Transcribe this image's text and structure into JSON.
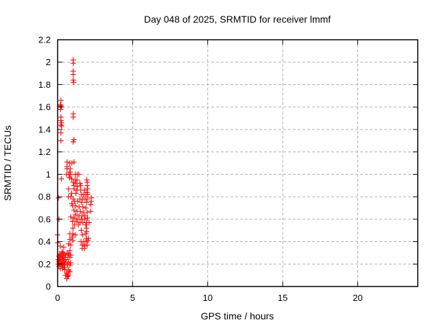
{
  "chart_data": {
    "type": "scatter",
    "title": "Day 048 of 2025, SRMTID for receiver lmmf",
    "xlabel": "GPS time / hours",
    "ylabel": "SRMTID / TECUs",
    "xlim": [
      0,
      24
    ],
    "ylim": [
      0,
      2.2
    ],
    "x_tick_values": [
      0,
      5,
      10,
      15,
      20
    ],
    "x_tick_labels": [
      "0",
      "5",
      "10",
      "15",
      "20"
    ],
    "y_tick_values": [
      0,
      0.2,
      0.4,
      0.6,
      0.8,
      1.0,
      1.2,
      1.4,
      1.6,
      1.8,
      2.0,
      2.2
    ],
    "y_tick_labels": [
      "0",
      "0.2",
      "0.4",
      "0.6",
      "0.8",
      "1",
      "1.2",
      "1.4",
      "1.6",
      "1.8",
      "2",
      "2.2"
    ],
    "grid": true,
    "legend_position": "none",
    "marker": {
      "shape": "plus",
      "color": "#ff0000",
      "size": 8
    },
    "grid_color": "#b0b0b0",
    "border_color": "#000000",
    "series": [
      {
        "name": "SRMTID",
        "points": [
          [
            1.04,
            2.02
          ],
          [
            1.04,
            1.99
          ],
          [
            1.04,
            1.92
          ],
          [
            1.04,
            1.89
          ],
          [
            1.04,
            1.84
          ],
          [
            1.07,
            1.82
          ],
          [
            0.22,
            1.66
          ],
          [
            0.18,
            1.62
          ],
          [
            0.22,
            1.61
          ],
          [
            0.25,
            1.6
          ],
          [
            0.2,
            1.58
          ],
          [
            1.04,
            1.54
          ],
          [
            1.04,
            1.51
          ],
          [
            0.22,
            1.51
          ],
          [
            0.22,
            1.48
          ],
          [
            0.26,
            1.46
          ],
          [
            0.22,
            1.44
          ],
          [
            0.26,
            1.43
          ],
          [
            0.22,
            1.37
          ],
          [
            1.09,
            1.31
          ],
          [
            0.22,
            1.3
          ],
          [
            1.04,
            1.29
          ],
          [
            0.63,
            1.11
          ],
          [
            1.09,
            1.11
          ],
          [
            0.81,
            1.1
          ],
          [
            0.95,
            1.1
          ],
          [
            0.63,
            1.07
          ],
          [
            0.63,
            1.05
          ],
          [
            0.84,
            1.05
          ],
          [
            0.82,
            1.02
          ],
          [
            0.59,
            1.0
          ],
          [
            0.73,
            1.0
          ],
          [
            0.86,
            1.0
          ],
          [
            1.18,
            1.0
          ],
          [
            1.31,
            1.0
          ],
          [
            1.42,
            1.0
          ],
          [
            0.8,
            0.97
          ],
          [
            0.25,
            0.96
          ],
          [
            0.94,
            0.96
          ],
          [
            1.18,
            0.95
          ],
          [
            1.29,
            0.95
          ],
          [
            1.95,
            0.95
          ],
          [
            1.04,
            0.93
          ],
          [
            1.97,
            0.93
          ],
          [
            1.22,
            0.92
          ],
          [
            1.49,
            0.92
          ],
          [
            1.09,
            0.9
          ],
          [
            1.54,
            0.9
          ],
          [
            1.97,
            0.9
          ],
          [
            1.31,
            0.89
          ],
          [
            0.72,
            0.87
          ],
          [
            1.09,
            0.87
          ],
          [
            2.0,
            0.87
          ],
          [
            1.29,
            0.86
          ],
          [
            1.54,
            0.86
          ],
          [
            1.79,
            0.86
          ],
          [
            1.97,
            0.84
          ],
          [
            0.93,
            0.83
          ],
          [
            1.22,
            0.83
          ],
          [
            1.59,
            0.82
          ],
          [
            1.74,
            0.82
          ],
          [
            1.88,
            0.82
          ],
          [
            2.0,
            0.82
          ],
          [
            0.72,
            0.8
          ],
          [
            0.88,
            0.8
          ],
          [
            0.05,
            0.79
          ],
          [
            2.24,
            0.79
          ],
          [
            1.04,
            0.78
          ],
          [
            1.49,
            0.78
          ],
          [
            1.68,
            0.78
          ],
          [
            1.83,
            0.78
          ],
          [
            1.97,
            0.78
          ],
          [
            1.13,
            0.76
          ],
          [
            1.33,
            0.76
          ],
          [
            2.24,
            0.76
          ],
          [
            1.59,
            0.75
          ],
          [
            1.93,
            0.75
          ],
          [
            0.95,
            0.74
          ],
          [
            2.2,
            0.73
          ],
          [
            0.99,
            0.72
          ],
          [
            1.18,
            0.72
          ],
          [
            1.43,
            0.71
          ],
          [
            1.68,
            0.71
          ],
          [
            1.88,
            0.7
          ],
          [
            1.09,
            0.68
          ],
          [
            1.29,
            0.67
          ],
          [
            1.52,
            0.67
          ],
          [
            2.2,
            0.67
          ],
          [
            1.74,
            0.66
          ],
          [
            1.97,
            0.66
          ],
          [
            1.18,
            0.64
          ],
          [
            1.43,
            0.63
          ],
          [
            1.63,
            0.63
          ],
          [
            1.83,
            0.63
          ],
          [
            0.88,
            0.62
          ],
          [
            1.09,
            0.61
          ],
          [
            1.99,
            0.61
          ],
          [
            0.09,
            0.6
          ],
          [
            1.33,
            0.6
          ],
          [
            1.58,
            0.6
          ],
          [
            1.79,
            0.6
          ],
          [
            0.99,
            0.58
          ],
          [
            1.24,
            0.58
          ],
          [
            1.49,
            0.57
          ],
          [
            1.68,
            0.57
          ],
          [
            1.93,
            0.57
          ],
          [
            2.1,
            0.57
          ],
          [
            1.13,
            0.55
          ],
          [
            1.38,
            0.55
          ],
          [
            1.88,
            0.55
          ],
          [
            1.02,
            0.52
          ],
          [
            1.93,
            0.52
          ],
          [
            1.58,
            0.5
          ],
          [
            1.93,
            0.49
          ],
          [
            0.82,
            0.47
          ],
          [
            1.02,
            0.47
          ],
          [
            1.88,
            0.47
          ],
          [
            0.0,
            0.46
          ],
          [
            1.18,
            0.46
          ],
          [
            1.65,
            0.46
          ],
          [
            0.96,
            0.44
          ],
          [
            1.93,
            0.43
          ],
          [
            2.06,
            0.43
          ],
          [
            0.82,
            0.42
          ],
          [
            1.02,
            0.41
          ],
          [
            2.02,
            0.41
          ],
          [
            1.56,
            0.4
          ],
          [
            1.74,
            0.4
          ],
          [
            1.88,
            0.4
          ],
          [
            0.0,
            0.39
          ],
          [
            0.73,
            0.38
          ],
          [
            0.87,
            0.37
          ],
          [
            1.65,
            0.37
          ],
          [
            1.97,
            0.37
          ],
          [
            0.18,
            0.36
          ],
          [
            1.79,
            0.36
          ],
          [
            0.41,
            0.35
          ],
          [
            1.65,
            0.34
          ],
          [
            1.79,
            0.34
          ],
          [
            0.82,
            0.32
          ],
          [
            0.29,
            0.31
          ],
          [
            0.36,
            0.3
          ],
          [
            0.63,
            0.3
          ],
          [
            0.13,
            0.29
          ],
          [
            0.43,
            0.29
          ],
          [
            0.73,
            0.29
          ],
          [
            0.22,
            0.28
          ],
          [
            0.52,
            0.28
          ],
          [
            0.87,
            0.28
          ],
          [
            0.09,
            0.27
          ],
          [
            0.33,
            0.27
          ],
          [
            0.18,
            0.26
          ],
          [
            0.43,
            0.26
          ],
          [
            0.68,
            0.26
          ],
          [
            0.82,
            0.26
          ],
          [
            0.29,
            0.25
          ],
          [
            0.04,
            0.24
          ],
          [
            0.38,
            0.24
          ],
          [
            0.52,
            0.24
          ],
          [
            0.13,
            0.23
          ],
          [
            0.29,
            0.23
          ],
          [
            0.09,
            0.22
          ],
          [
            0.43,
            0.22
          ],
          [
            0.59,
            0.22
          ],
          [
            0.73,
            0.22
          ],
          [
            0.22,
            0.21
          ],
          [
            0.38,
            0.21
          ],
          [
            0.87,
            0.21
          ],
          [
            0.04,
            0.2
          ],
          [
            0.29,
            0.2
          ],
          [
            0.48,
            0.2
          ],
          [
            0.18,
            0.19
          ],
          [
            0.33,
            0.19
          ],
          [
            0.66,
            0.19
          ],
          [
            0.82,
            0.19
          ],
          [
            0.09,
            0.18
          ],
          [
            0.29,
            0.18
          ],
          [
            0.43,
            0.17
          ],
          [
            0.18,
            0.16
          ],
          [
            0.33,
            0.16
          ],
          [
            0.48,
            0.15
          ],
          [
            0.73,
            0.15
          ],
          [
            0.73,
            0.14
          ],
          [
            0.82,
            0.13
          ],
          [
            0.59,
            0.12
          ],
          [
            0.52,
            0.1
          ],
          [
            0.63,
            0.1
          ],
          [
            0.73,
            0.1
          ],
          [
            0.68,
            0.09
          ],
          [
            0.61,
            0.07
          ]
        ]
      }
    ]
  }
}
